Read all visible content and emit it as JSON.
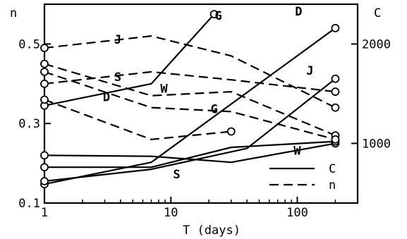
{
  "chart_data": {
    "type": "line",
    "title": "",
    "xlabel": "T (days)",
    "ylabel_left": "n",
    "ylabel_right": "C",
    "x_scale": "log",
    "xlim": [
      1,
      300
    ],
    "ylim_left": [
      0.1,
      0.6
    ],
    "ylim_right": [
      400,
      2400
    ],
    "x_ticks": [
      1,
      10,
      100
    ],
    "x_tick_labels": [
      "1",
      "10",
      "100"
    ],
    "y_left_ticks": [
      0.1,
      0.3,
      0.5
    ],
    "y_left_tick_labels": [
      "0.1",
      "0.3",
      "0.5"
    ],
    "y_right_ticks": [
      1000,
      2000
    ],
    "y_right_tick_labels": [
      "1000",
      "2000"
    ],
    "grid": false,
    "legend_position": "bottom-right",
    "legend": [
      {
        "label": "C",
        "style": "solid"
      },
      {
        "label": "n",
        "style": "dashed"
      }
    ],
    "series": [
      {
        "name": "G",
        "quantity": "C",
        "axis": "right",
        "style": "solid",
        "x": [
          1,
          7,
          22
        ],
        "y": [
          1380,
          1600,
          2300
        ]
      },
      {
        "name": "D",
        "quantity": "C",
        "axis": "right",
        "style": "solid",
        "x": [
          1,
          7,
          200
        ],
        "y": [
          590,
          810,
          2160
        ]
      },
      {
        "name": "J",
        "quantity": "C",
        "axis": "right",
        "style": "solid",
        "x": [
          1,
          7,
          40,
          200
        ],
        "y": [
          620,
          740,
          950,
          1650
        ]
      },
      {
        "name": "W",
        "quantity": "C",
        "axis": "right",
        "style": "solid",
        "x": [
          1,
          7,
          30,
          200
        ],
        "y": [
          880,
          870,
          810,
          1000
        ]
      },
      {
        "name": "S",
        "quantity": "C",
        "axis": "right",
        "style": "solid",
        "x": [
          1,
          7,
          30,
          200
        ],
        "y": [
          760,
          760,
          960,
          1020
        ]
      },
      {
        "name": "J",
        "quantity": "n",
        "axis": "left",
        "style": "dashed",
        "x": [
          1,
          7,
          30,
          200
        ],
        "y": [
          0.49,
          0.52,
          0.47,
          0.34
        ]
      },
      {
        "name": "S",
        "quantity": "n",
        "axis": "left",
        "style": "dashed",
        "x": [
          1,
          7,
          30,
          200
        ],
        "y": [
          0.4,
          0.43,
          0.41,
          0.38
        ]
      },
      {
        "name": "W",
        "quantity": "n",
        "axis": "left",
        "style": "dashed",
        "x": [
          1,
          7,
          30,
          200
        ],
        "y": [
          0.45,
          0.37,
          0.38,
          0.27
        ]
      },
      {
        "name": "D",
        "quantity": "n",
        "axis": "left",
        "style": "dashed",
        "x": [
          1,
          7,
          30
        ],
        "y": [
          0.36,
          0.26,
          0.28
        ]
      },
      {
        "name": "",
        "quantity": "n",
        "axis": "left",
        "style": "dashed",
        "x": [
          1,
          7,
          30,
          200
        ],
        "y": [
          0.43,
          0.34,
          0.33,
          0.26
        ]
      }
    ],
    "series_labels": [
      {
        "text": "G",
        "series": 0
      },
      {
        "text": "D",
        "series": 1
      },
      {
        "text": "J",
        "series": 2
      },
      {
        "text": "W",
        "series": 3
      },
      {
        "text": "S",
        "series": 4
      },
      {
        "text": "J",
        "series": 5
      },
      {
        "text": "S",
        "series": 6
      },
      {
        "text": "W",
        "series": 7
      },
      {
        "text": "D",
        "series": 8
      },
      {
        "text": "G",
        "series": 9
      }
    ]
  }
}
